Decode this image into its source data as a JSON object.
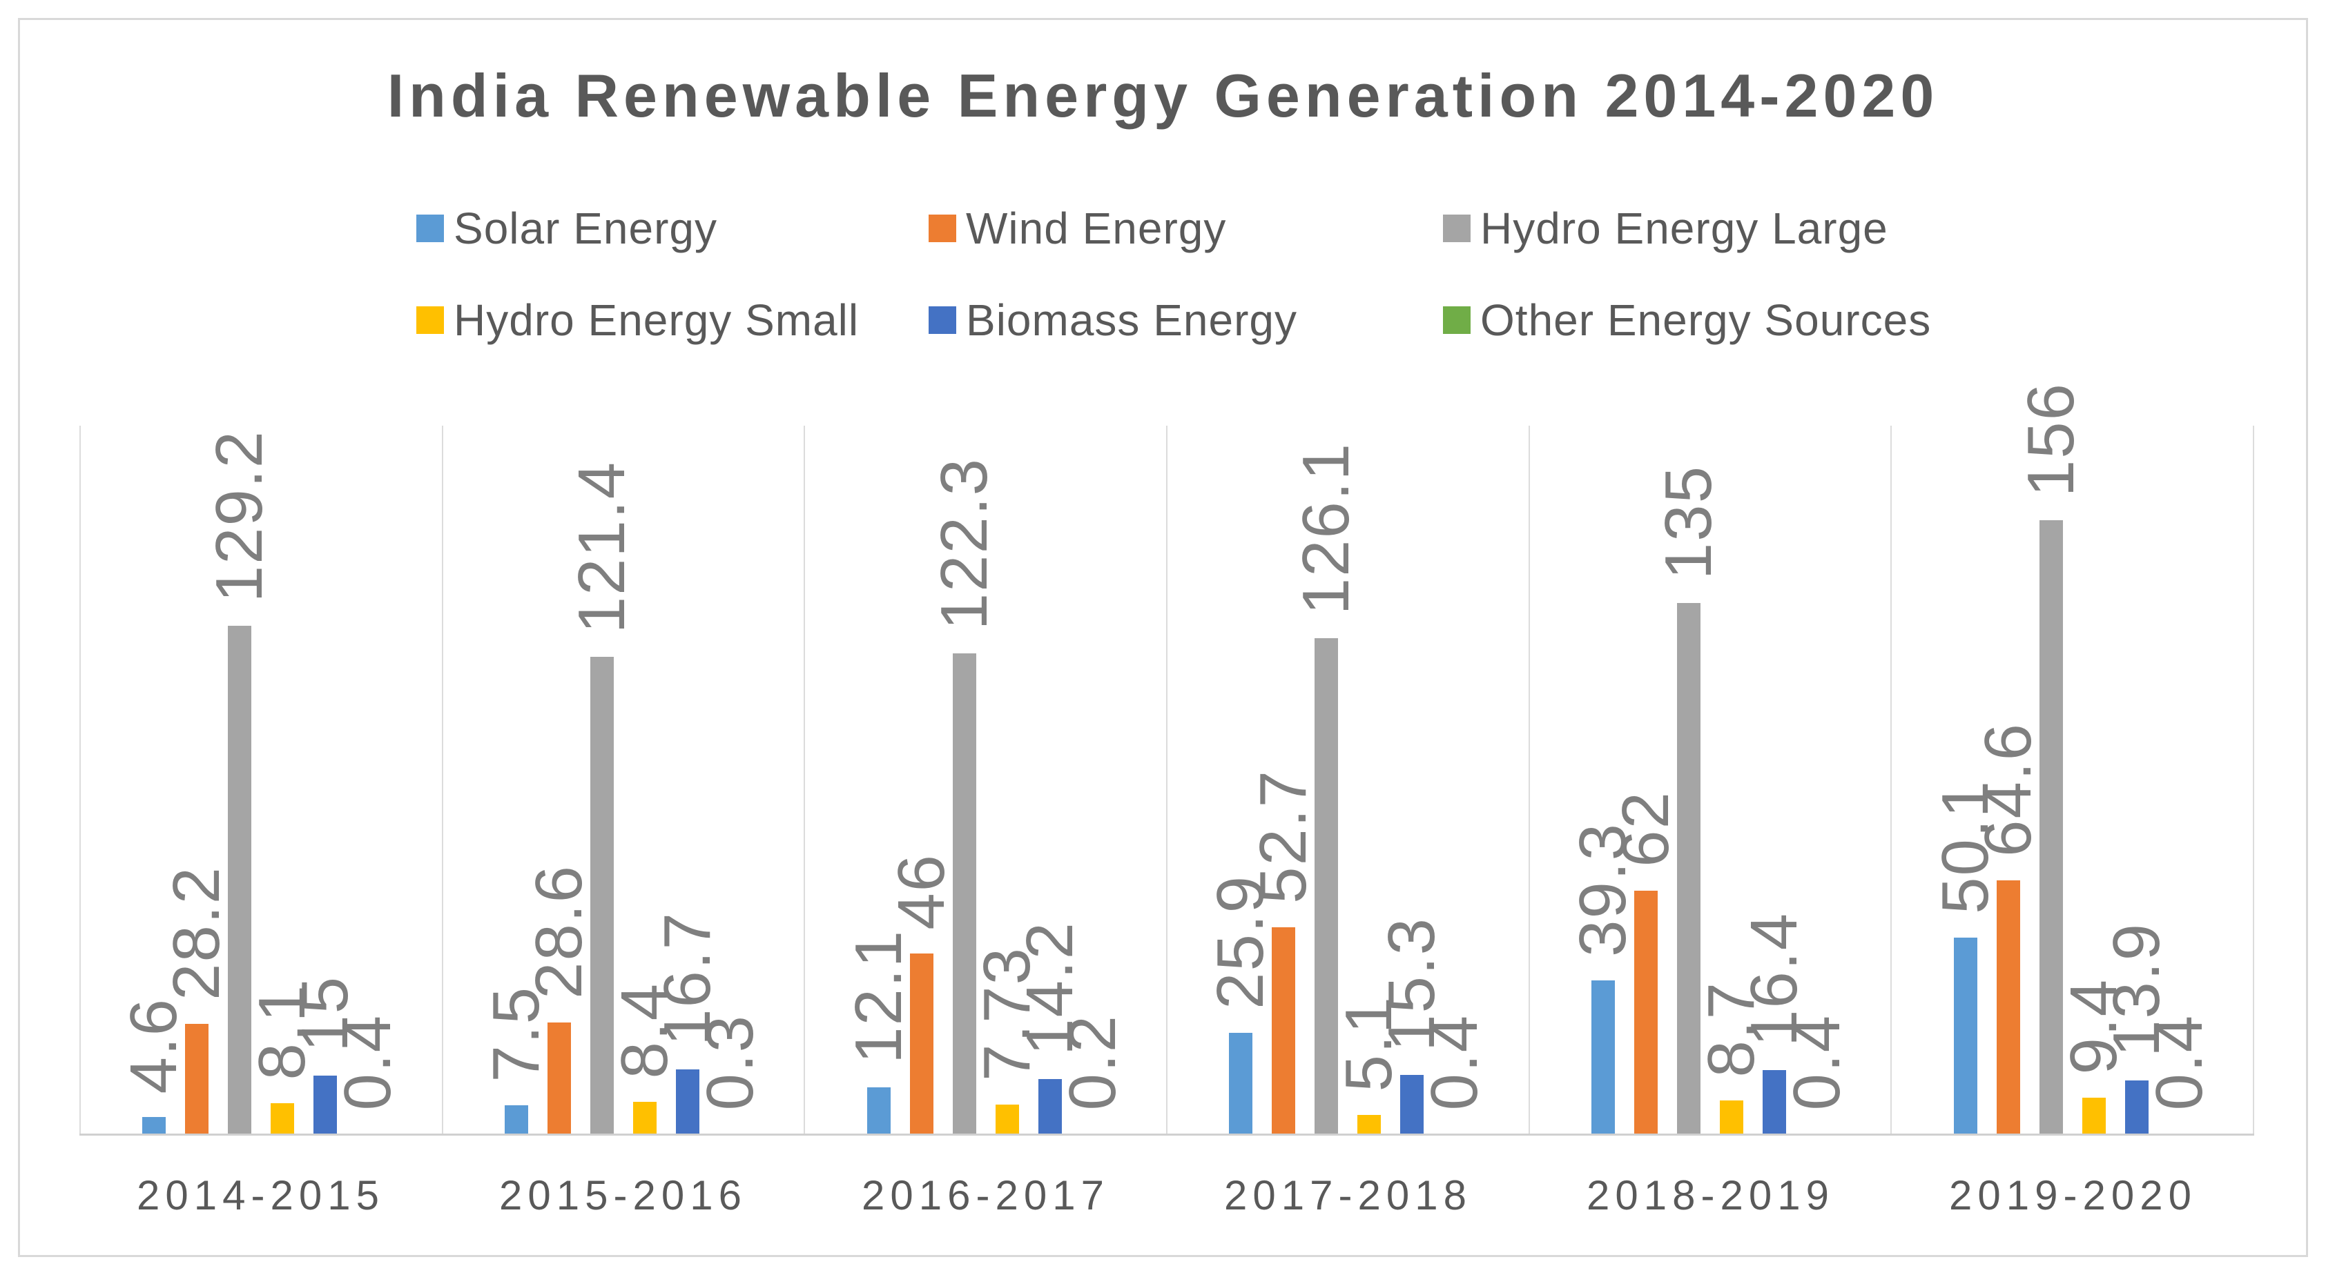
{
  "chart_data": {
    "type": "bar",
    "title": "India Renewable Energy Generation 2014-2020",
    "categories": [
      "2014-2015",
      "2015-2016",
      "2016-2017",
      "2017-2018",
      "2018-2019",
      "2019-2020"
    ],
    "series": [
      {
        "name": "Solar Energy",
        "color": "#5B9BD5",
        "values": [
          4.6,
          7.5,
          12.1,
          25.9,
          39.3,
          50.1
        ],
        "labels": [
          "4.6",
          "7.5",
          "12.1",
          "25.9",
          "39.3",
          "50.1"
        ]
      },
      {
        "name": "Wind Energy",
        "color": "#ED7D31",
        "values": [
          28.2,
          28.6,
          46,
          52.7,
          62,
          64.6
        ],
        "labels": [
          "28.2",
          "28.6",
          "46",
          "52.7",
          "62",
          "64.6"
        ]
      },
      {
        "name": "Hydro Energy Large",
        "color": "#A5A5A5",
        "values": [
          129.2,
          121.4,
          122.3,
          126.1,
          135,
          156
        ],
        "labels": [
          "129.2",
          "121.4",
          "122.3",
          "126.1",
          "135",
          "156"
        ]
      },
      {
        "name": "Hydro Energy Small",
        "color": "#FFC000",
        "values": [
          8.1,
          8.4,
          7.73,
          5.1,
          8.7,
          9.4
        ],
        "labels": [
          "8.1",
          "8.4",
          "7.73",
          "5.1",
          "8.7",
          "9.4"
        ]
      },
      {
        "name": "Biomass Energy",
        "color": "#4472C4",
        "values": [
          15,
          16.7,
          14.2,
          15.3,
          16.4,
          13.9
        ],
        "labels": [
          "15",
          "16.7",
          "14.2",
          "15.3",
          "16.4",
          "13.9"
        ]
      },
      {
        "name": "Other Energy Sources",
        "color": "#70AD47",
        "values": [
          0.4,
          0.3,
          0.2,
          0.4,
          0.4,
          0.4
        ],
        "labels": [
          "0.4",
          "0.3",
          "0.2",
          "0.4",
          "0.4",
          "0.4"
        ]
      }
    ],
    "xlabel": "",
    "ylabel": "",
    "ylim": [
      0,
      180
    ],
    "grid": "vertical category separator lines only",
    "legend_position": "top",
    "data_labels": "rotated 90 degrees, outside end of bars",
    "text_colors": {
      "title": "#595959",
      "axis_labels": "#595959",
      "legend": "#595959",
      "data_labels": "#7F7F7F"
    },
    "line_color": "#D9D9D9",
    "background": "#FFFFFF"
  }
}
